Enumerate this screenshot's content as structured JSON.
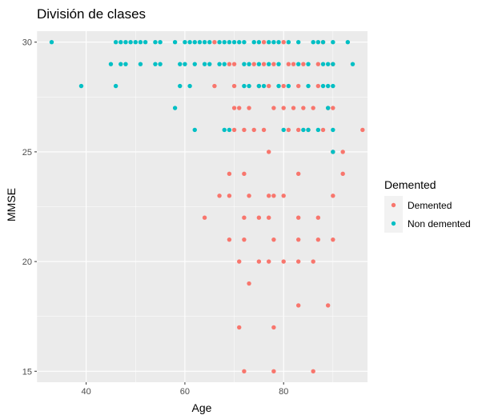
{
  "chart_data": {
    "type": "scatter",
    "title": "División de clases",
    "xlabel": "Age",
    "ylabel": "MMSE",
    "xlim": [
      30,
      97
    ],
    "ylim": [
      14.5,
      30.5
    ],
    "x_ticks": [
      "40",
      "60",
      "80"
    ],
    "y_ticks": [
      "15",
      "20",
      "25",
      "30"
    ],
    "grid": true,
    "legend": {
      "title": "Demented",
      "placement": "right"
    },
    "series": [
      {
        "name": "Demented",
        "color": "#F8766D",
        "points": [
          [
            66,
            30
          ],
          [
            76,
            30
          ],
          [
            80,
            30
          ],
          [
            88,
            30
          ],
          [
            69,
            29
          ],
          [
            70,
            29
          ],
          [
            74,
            29
          ],
          [
            76,
            29
          ],
          [
            78,
            29
          ],
          [
            81,
            29
          ],
          [
            82,
            29
          ],
          [
            84,
            29
          ],
          [
            87,
            29
          ],
          [
            90,
            29
          ],
          [
            66,
            28
          ],
          [
            70,
            28
          ],
          [
            75,
            28
          ],
          [
            77,
            28
          ],
          [
            80,
            28
          ],
          [
            83,
            28
          ],
          [
            87,
            28
          ],
          [
            70,
            27
          ],
          [
            71,
            27
          ],
          [
            73,
            27
          ],
          [
            78,
            27
          ],
          [
            80,
            27
          ],
          [
            82,
            27
          ],
          [
            84,
            27
          ],
          [
            86,
            27
          ],
          [
            89,
            27
          ],
          [
            90,
            27
          ],
          [
            70,
            26
          ],
          [
            72,
            26
          ],
          [
            74,
            26
          ],
          [
            76,
            26
          ],
          [
            81,
            26
          ],
          [
            83,
            26
          ],
          [
            85,
            26
          ],
          [
            88,
            26
          ],
          [
            96,
            26
          ],
          [
            77,
            25
          ],
          [
            90,
            25
          ],
          [
            92,
            25
          ],
          [
            69,
            24
          ],
          [
            72,
            24
          ],
          [
            83,
            24
          ],
          [
            92,
            24
          ],
          [
            67,
            23
          ],
          [
            69,
            23
          ],
          [
            73,
            23
          ],
          [
            77,
            23
          ],
          [
            78,
            23
          ],
          [
            80,
            23
          ],
          [
            90,
            23
          ],
          [
            64,
            22
          ],
          [
            72,
            22
          ],
          [
            75,
            22
          ],
          [
            77,
            22
          ],
          [
            83,
            22
          ],
          [
            87,
            22
          ],
          [
            69,
            21
          ],
          [
            72,
            21
          ],
          [
            78,
            21
          ],
          [
            83,
            21
          ],
          [
            87,
            21
          ],
          [
            90,
            21
          ],
          [
            71,
            20
          ],
          [
            75,
            20
          ],
          [
            77,
            20
          ],
          [
            80,
            20
          ],
          [
            83,
            20
          ],
          [
            86,
            20
          ],
          [
            73,
            19
          ],
          [
            83,
            18
          ],
          [
            89,
            18
          ],
          [
            71,
            17
          ],
          [
            78,
            17
          ],
          [
            72,
            15
          ],
          [
            78,
            15
          ],
          [
            86,
            15
          ]
        ]
      },
      {
        "name": "Non demented",
        "color": "#00BFC4",
        "points": [
          [
            33,
            30
          ],
          [
            46,
            30
          ],
          [
            47,
            30
          ],
          [
            48,
            30
          ],
          [
            49,
            30
          ],
          [
            50,
            30
          ],
          [
            51,
            30
          ],
          [
            52,
            30
          ],
          [
            54,
            30
          ],
          [
            55,
            30
          ],
          [
            58,
            30
          ],
          [
            60,
            30
          ],
          [
            61,
            30
          ],
          [
            62,
            30
          ],
          [
            63,
            30
          ],
          [
            64,
            30
          ],
          [
            65,
            30
          ],
          [
            67,
            30
          ],
          [
            68,
            30
          ],
          [
            69,
            30
          ],
          [
            70,
            30
          ],
          [
            71,
            30
          ],
          [
            72,
            30
          ],
          [
            74,
            30
          ],
          [
            75,
            30
          ],
          [
            77,
            30
          ],
          [
            78,
            30
          ],
          [
            79,
            30
          ],
          [
            81,
            30
          ],
          [
            83,
            30
          ],
          [
            86,
            30
          ],
          [
            87,
            30
          ],
          [
            88,
            30
          ],
          [
            90,
            30
          ],
          [
            93,
            30
          ],
          [
            45,
            29
          ],
          [
            47,
            29
          ],
          [
            48,
            29
          ],
          [
            51,
            29
          ],
          [
            54,
            29
          ],
          [
            55,
            29
          ],
          [
            59,
            29
          ],
          [
            60,
            29
          ],
          [
            62,
            29
          ],
          [
            64,
            29
          ],
          [
            65,
            29
          ],
          [
            67,
            29
          ],
          [
            68,
            29
          ],
          [
            72,
            29
          ],
          [
            73,
            29
          ],
          [
            75,
            29
          ],
          [
            77,
            29
          ],
          [
            79,
            29
          ],
          [
            83,
            29
          ],
          [
            85,
            29
          ],
          [
            88,
            29
          ],
          [
            89,
            29
          ],
          [
            90,
            29
          ],
          [
            94,
            29
          ],
          [
            39,
            28
          ],
          [
            46,
            28
          ],
          [
            59,
            28
          ],
          [
            61,
            28
          ],
          [
            72,
            28
          ],
          [
            73,
            28
          ],
          [
            75,
            28
          ],
          [
            76,
            28
          ],
          [
            79,
            28
          ],
          [
            81,
            28
          ],
          [
            85,
            28
          ],
          [
            88,
            28
          ],
          [
            89,
            28
          ],
          [
            90,
            28
          ],
          [
            58,
            27
          ],
          [
            89,
            27
          ],
          [
            62,
            26
          ],
          [
            68,
            26
          ],
          [
            69,
            26
          ],
          [
            80,
            26
          ],
          [
            84,
            26
          ],
          [
            85,
            26
          ],
          [
            87,
            26
          ],
          [
            90,
            26
          ],
          [
            90,
            25
          ]
        ]
      }
    ]
  }
}
